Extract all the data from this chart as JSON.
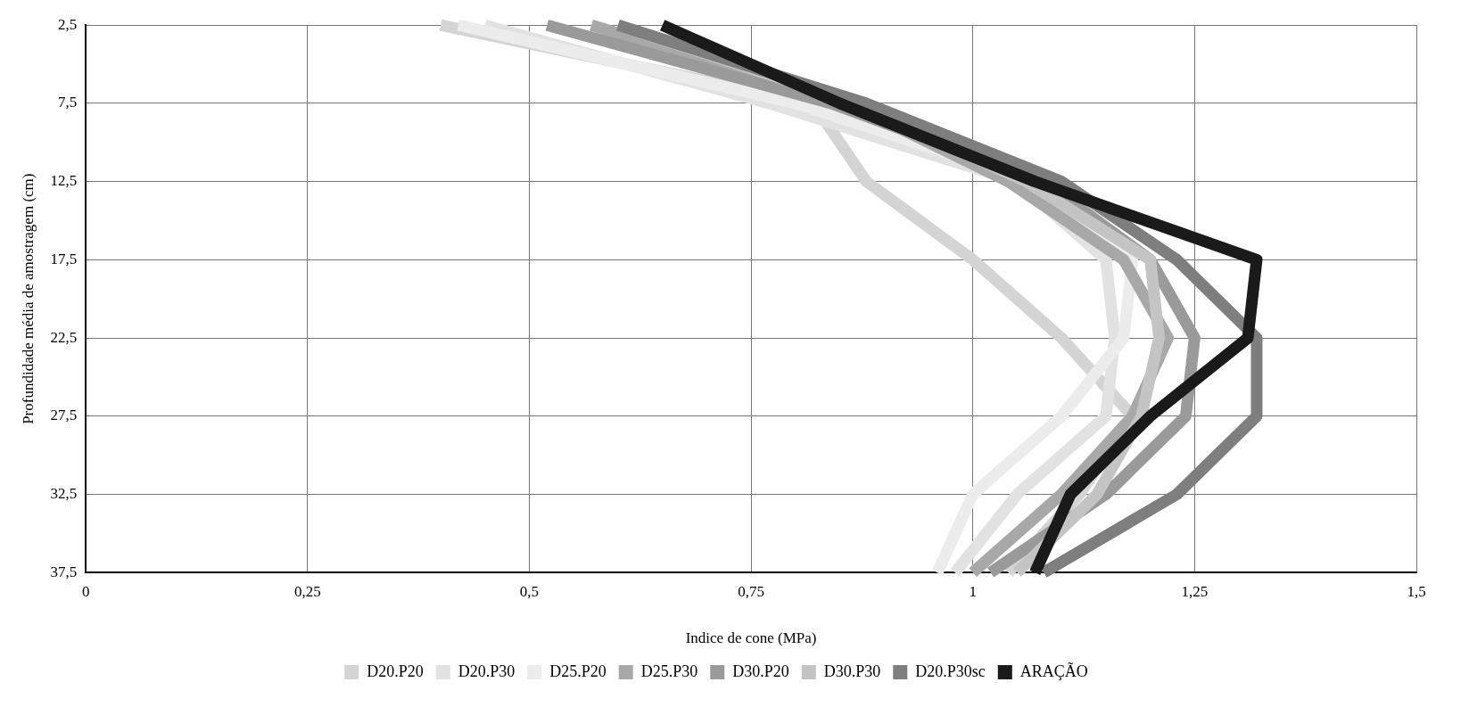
{
  "chart_data": {
    "type": "line",
    "orientation": "horizontal",
    "xlabel": "Indice de cone (MPa)",
    "ylabel": "Profundidade média de amostragem (cm)",
    "categories": [
      "2,5",
      "7,5",
      "12,5",
      "17,5",
      "22,5",
      "27,5",
      "32,5",
      "37,5"
    ],
    "xlim": [
      0,
      1.5
    ],
    "xticks": [
      0,
      {
        "value": 0.25,
        "label": "0,25"
      },
      {
        "value": 0.5,
        "label": "0,5"
      },
      {
        "value": 0.75,
        "label": "0,75"
      },
      1,
      {
        "value": 1.25,
        "label": "1,25"
      },
      {
        "value": 1.5,
        "label": "1,5"
      }
    ],
    "grid": true,
    "legend": "bottom",
    "line_style": "solid",
    "marker": "none",
    "series": [
      {
        "name": "D20.P20",
        "color": "#d4d4d4",
        "values": [
          0.4,
          0.82,
          0.88,
          1.0,
          1.1,
          1.18,
          1.12,
          1.04
        ]
      },
      {
        "name": "D20.P30",
        "color": "#e2e2e2",
        "values": [
          0.45,
          0.77,
          1.05,
          1.15,
          1.16,
          1.15,
          1.05,
          0.98
        ]
      },
      {
        "name": "D25.P20",
        "color": "#ececec",
        "values": [
          0.42,
          0.8,
          1.07,
          1.18,
          1.17,
          1.1,
          1.0,
          0.96
        ]
      },
      {
        "name": "D25.P30",
        "color": "#a8a8a8",
        "values": [
          0.57,
          0.86,
          1.04,
          1.17,
          1.22,
          1.18,
          1.1,
          1.0
        ]
      },
      {
        "name": "D30.P20",
        "color": "#9a9a9a",
        "values": [
          0.52,
          0.84,
          1.08,
          1.2,
          1.25,
          1.24,
          1.15,
          1.02
        ]
      },
      {
        "name": "D30.P30",
        "color": "#c4c4c4",
        "values": [
          0.6,
          0.87,
          1.06,
          1.2,
          1.21,
          1.19,
          1.14,
          1.05
        ]
      },
      {
        "name": "D20.P30sc",
        "color": "#7e7e7e",
        "values": [
          0.6,
          0.88,
          1.1,
          1.23,
          1.32,
          1.32,
          1.23,
          1.08
        ]
      },
      {
        "name": "ARAÇÃO",
        "color": "#1a1a1a",
        "values": [
          0.65,
          0.85,
          1.07,
          1.32,
          1.31,
          1.2,
          1.11,
          1.07
        ]
      }
    ]
  }
}
